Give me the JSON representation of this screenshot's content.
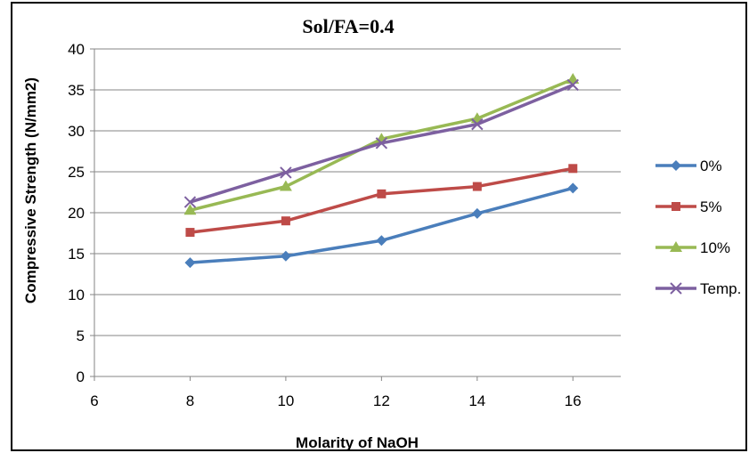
{
  "chart_data": {
    "type": "line",
    "title": "Sol/FA=0.4",
    "xlabel": "Molarity of NaOH",
    "ylabel": "Compressive Strength (N/mm2)",
    "xlim": [
      6,
      17
    ],
    "ylim": [
      0,
      40
    ],
    "xticks": [
      6,
      8,
      10,
      12,
      14,
      16
    ],
    "yticks": [
      0,
      5,
      10,
      15,
      20,
      25,
      30,
      35,
      40
    ],
    "grid": "horizontal",
    "legend_position": "right",
    "x": [
      8,
      10,
      12,
      14,
      16
    ],
    "series": [
      {
        "name": "0%",
        "values": [
          13.9,
          14.7,
          16.6,
          19.9,
          23.0
        ],
        "color": "#4A7EBB",
        "marker": "diamond"
      },
      {
        "name": "5%",
        "values": [
          17.6,
          19.0,
          22.3,
          23.2,
          25.4
        ],
        "color": "#BE4B48",
        "marker": "square"
      },
      {
        "name": "10%",
        "values": [
          20.3,
          23.2,
          29.0,
          31.5,
          36.3
        ],
        "color": "#98B954",
        "marker": "triangle"
      },
      {
        "name": "Temp.",
        "values": [
          21.3,
          24.9,
          28.5,
          30.8,
          35.6
        ],
        "color": "#7D60A0",
        "marker": "x"
      }
    ]
  }
}
